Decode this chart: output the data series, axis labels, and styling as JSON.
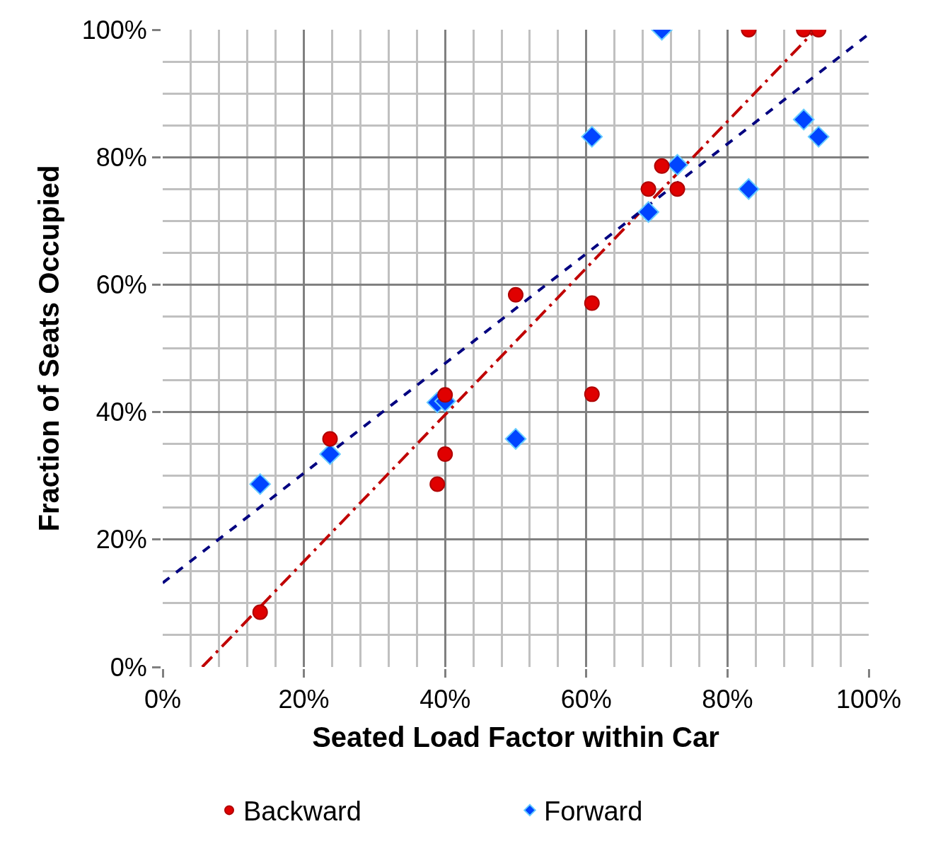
{
  "chart_data": {
    "type": "scatter",
    "xlabel": "Seated Load Factor within Car",
    "ylabel": "Fraction of Seats Occupied",
    "xlim": [
      0,
      100
    ],
    "ylim": [
      0,
      100
    ],
    "xticks": [
      {
        "value": 0,
        "label": "0%"
      },
      {
        "value": 4,
        "label": null
      },
      {
        "value": 8,
        "label": null
      },
      {
        "value": 12,
        "label": null
      },
      {
        "value": 16,
        "label": null
      },
      {
        "value": 20,
        "label": "20%"
      },
      {
        "value": 24,
        "label": null
      },
      {
        "value": 28,
        "label": null
      },
      {
        "value": 32,
        "label": null
      },
      {
        "value": 36,
        "label": null
      },
      {
        "value": 40,
        "label": "40%"
      },
      {
        "value": 44,
        "label": null
      },
      {
        "value": 48,
        "label": null
      },
      {
        "value": 52,
        "label": null
      },
      {
        "value": 56,
        "label": null
      },
      {
        "value": 60,
        "label": "60%"
      },
      {
        "value": 64,
        "label": null
      },
      {
        "value": 68,
        "label": null
      },
      {
        "value": 72,
        "label": null
      },
      {
        "value": 76,
        "label": null
      },
      {
        "value": 80,
        "label": "80%"
      },
      {
        "value": 84,
        "label": null
      },
      {
        "value": 88,
        "label": null
      },
      {
        "value": 92,
        "label": null
      },
      {
        "value": 96,
        "label": null
      },
      {
        "value": 100,
        "label": "100%"
      }
    ],
    "yticks": [
      {
        "value": 0,
        "label": "0%"
      },
      {
        "value": 5,
        "label": null
      },
      {
        "value": 10,
        "label": null
      },
      {
        "value": 15,
        "label": null
      },
      {
        "value": 20,
        "label": "20%"
      },
      {
        "value": 25,
        "label": null
      },
      {
        "value": 30,
        "label": null
      },
      {
        "value": 35,
        "label": null
      },
      {
        "value": 40,
        "label": "40%"
      },
      {
        "value": 45,
        "label": null
      },
      {
        "value": 50,
        "label": null
      },
      {
        "value": 55,
        "label": null
      },
      {
        "value": 60,
        "label": "60%"
      },
      {
        "value": 65,
        "label": null
      },
      {
        "value": 70,
        "label": null
      },
      {
        "value": 75,
        "label": null
      },
      {
        "value": 80,
        "label": "80%"
      },
      {
        "value": 85,
        "label": null
      },
      {
        "value": 90,
        "label": null
      },
      {
        "value": 95,
        "label": null
      },
      {
        "value": 100,
        "label": "100%"
      }
    ],
    "grid": true,
    "legend": "bottom",
    "series": [
      {
        "name": "Backward",
        "color": "#e00000",
        "marker": "circle",
        "x": [
          13.8,
          23.7,
          38.9,
          40.0,
          40.0,
          50.0,
          60.8,
          60.8,
          68.8,
          70.7,
          72.9,
          83.0,
          90.8,
          92.9
        ],
        "values": [
          8.6,
          35.8,
          28.7,
          42.7,
          33.4,
          58.4,
          57.1,
          42.8,
          75.0,
          78.6,
          75.0,
          100,
          100,
          100
        ]
      },
      {
        "name": "Forward",
        "color": "#0044ff",
        "marker": "diamond",
        "x": [
          13.8,
          23.7,
          38.9,
          40.0,
          50.0,
          60.8,
          68.8,
          70.7,
          72.9,
          83.0,
          90.8,
          92.9
        ],
        "values": [
          28.7,
          33.4,
          41.5,
          41.7,
          35.8,
          83.2,
          71.4,
          100,
          78.8,
          75.0,
          85.9,
          83.2
        ]
      },
      {
        "type": "line",
        "color": "#c00000",
        "line_style": "dashdot",
        "x": [
          5.6,
          92.5
        ],
        "values": [
          0,
          100
        ]
      },
      {
        "type": "line",
        "color": "#000080",
        "line_style": "dashed",
        "x": [
          0,
          100
        ],
        "values": [
          13.2,
          99.3
        ]
      }
    ]
  }
}
